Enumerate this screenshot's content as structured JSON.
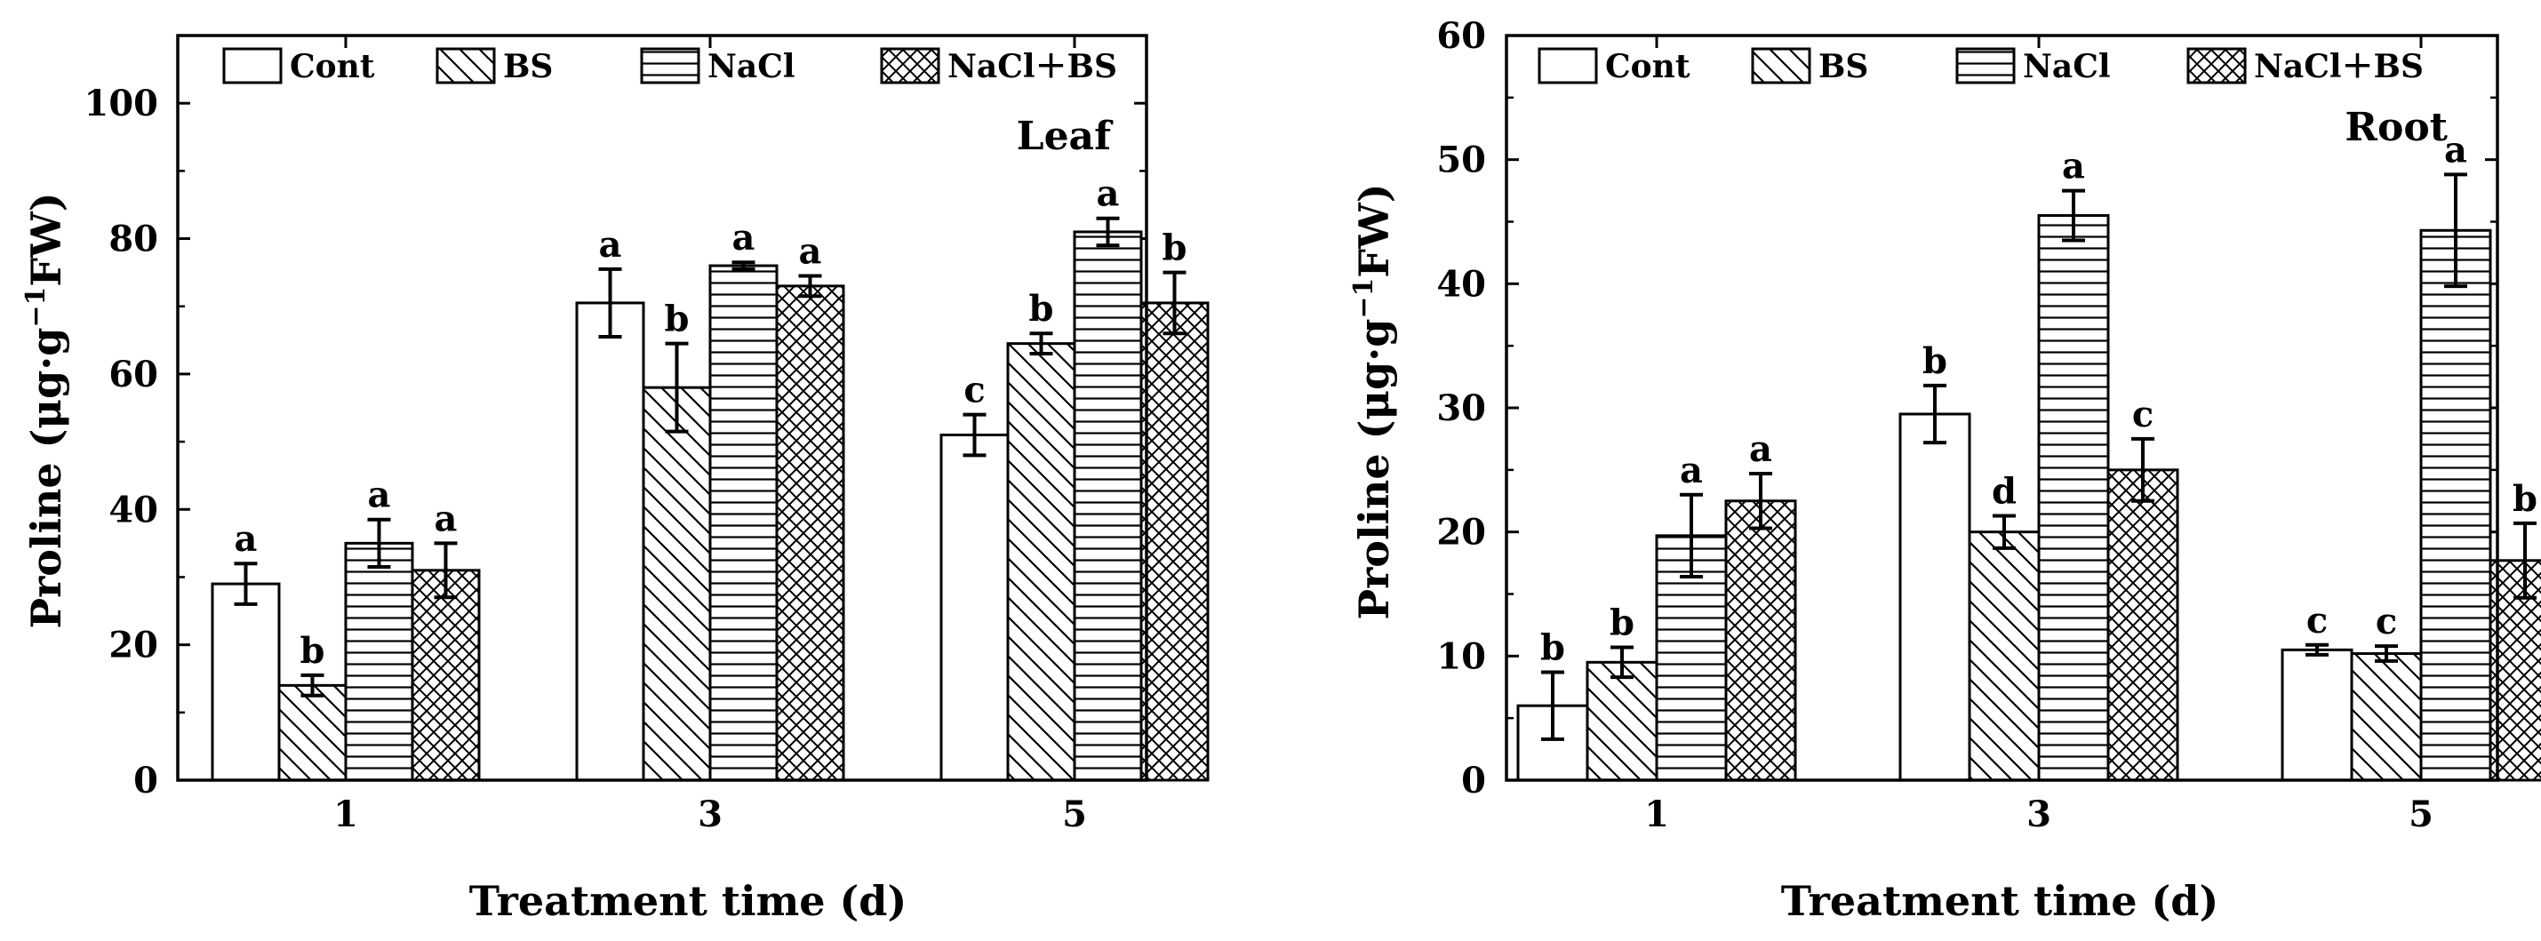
{
  "chart_data": [
    {
      "type": "bar",
      "panel": "left",
      "tag": "Leaf",
      "xlabel": "Treatment time (d)",
      "ylabel_main": "Proline (μg·g",
      "ylabel_sup": "−1",
      "ylabel_tail": "FW)",
      "ylim": [
        0,
        110
      ],
      "yticks": [
        "0",
        "20",
        "40",
        "60",
        "80",
        "100"
      ],
      "categories": [
        "1",
        "3",
        "5"
      ],
      "legend": [
        "Cont",
        "BS",
        "NaCl",
        "NaCl＋BS"
      ],
      "series": [
        {
          "name": "Cont",
          "pattern": "none",
          "values": [
            29,
            70.5,
            51
          ],
          "errors": [
            3,
            5,
            3
          ],
          "labels": [
            "a",
            "a",
            "c"
          ]
        },
        {
          "name": "BS",
          "pattern": "diag",
          "values": [
            14,
            58,
            64.5
          ],
          "errors": [
            1.5,
            6.5,
            1.5
          ],
          "labels": [
            "b",
            "b",
            "b"
          ]
        },
        {
          "name": "NaCl",
          "pattern": "horiz",
          "values": [
            35,
            76,
            81
          ],
          "errors": [
            3.5,
            0.5,
            2
          ],
          "labels": [
            "a",
            "a",
            "a"
          ]
        },
        {
          "name": "NaCl＋BS",
          "pattern": "cross",
          "values": [
            31,
            73,
            70.5
          ],
          "errors": [
            4,
            1.5,
            4.5
          ],
          "labels": [
            "a",
            "a",
            "b"
          ]
        }
      ]
    },
    {
      "type": "bar",
      "panel": "right",
      "tag": "Root",
      "xlabel": "Treatment time (d)",
      "ylabel_main": "Proline (μg·g",
      "ylabel_sup": "−1",
      "ylabel_tail": "FW)",
      "ylim": [
        0,
        60
      ],
      "yticks": [
        "0",
        "10",
        "20",
        "30",
        "40",
        "50",
        "60"
      ],
      "categories": [
        "1",
        "3",
        "5"
      ],
      "legend": [
        "Cont",
        "BS",
        "NaCl",
        "NaCl＋BS"
      ],
      "series": [
        {
          "name": "Cont",
          "pattern": "none",
          "values": [
            6,
            29.5,
            10.5
          ],
          "errors": [
            2.7,
            2.3,
            0.4
          ],
          "labels": [
            "b",
            "b",
            "c"
          ]
        },
        {
          "name": "BS",
          "pattern": "diag",
          "values": [
            9.5,
            20,
            10.2
          ],
          "errors": [
            1.2,
            1.3,
            0.6
          ],
          "labels": [
            "b",
            "d",
            "c"
          ]
        },
        {
          "name": "NaCl",
          "pattern": "horiz",
          "values": [
            19.7,
            45.5,
            44.3
          ],
          "errors": [
            3.3,
            2,
            4.5
          ],
          "labels": [
            "a",
            "a",
            "a"
          ]
        },
        {
          "name": "NaCl＋BS",
          "pattern": "cross",
          "values": [
            22.5,
            25,
            17.7
          ],
          "errors": [
            2.2,
            2.5,
            3
          ],
          "labels": [
            "a",
            "c",
            "b"
          ]
        }
      ]
    }
  ]
}
